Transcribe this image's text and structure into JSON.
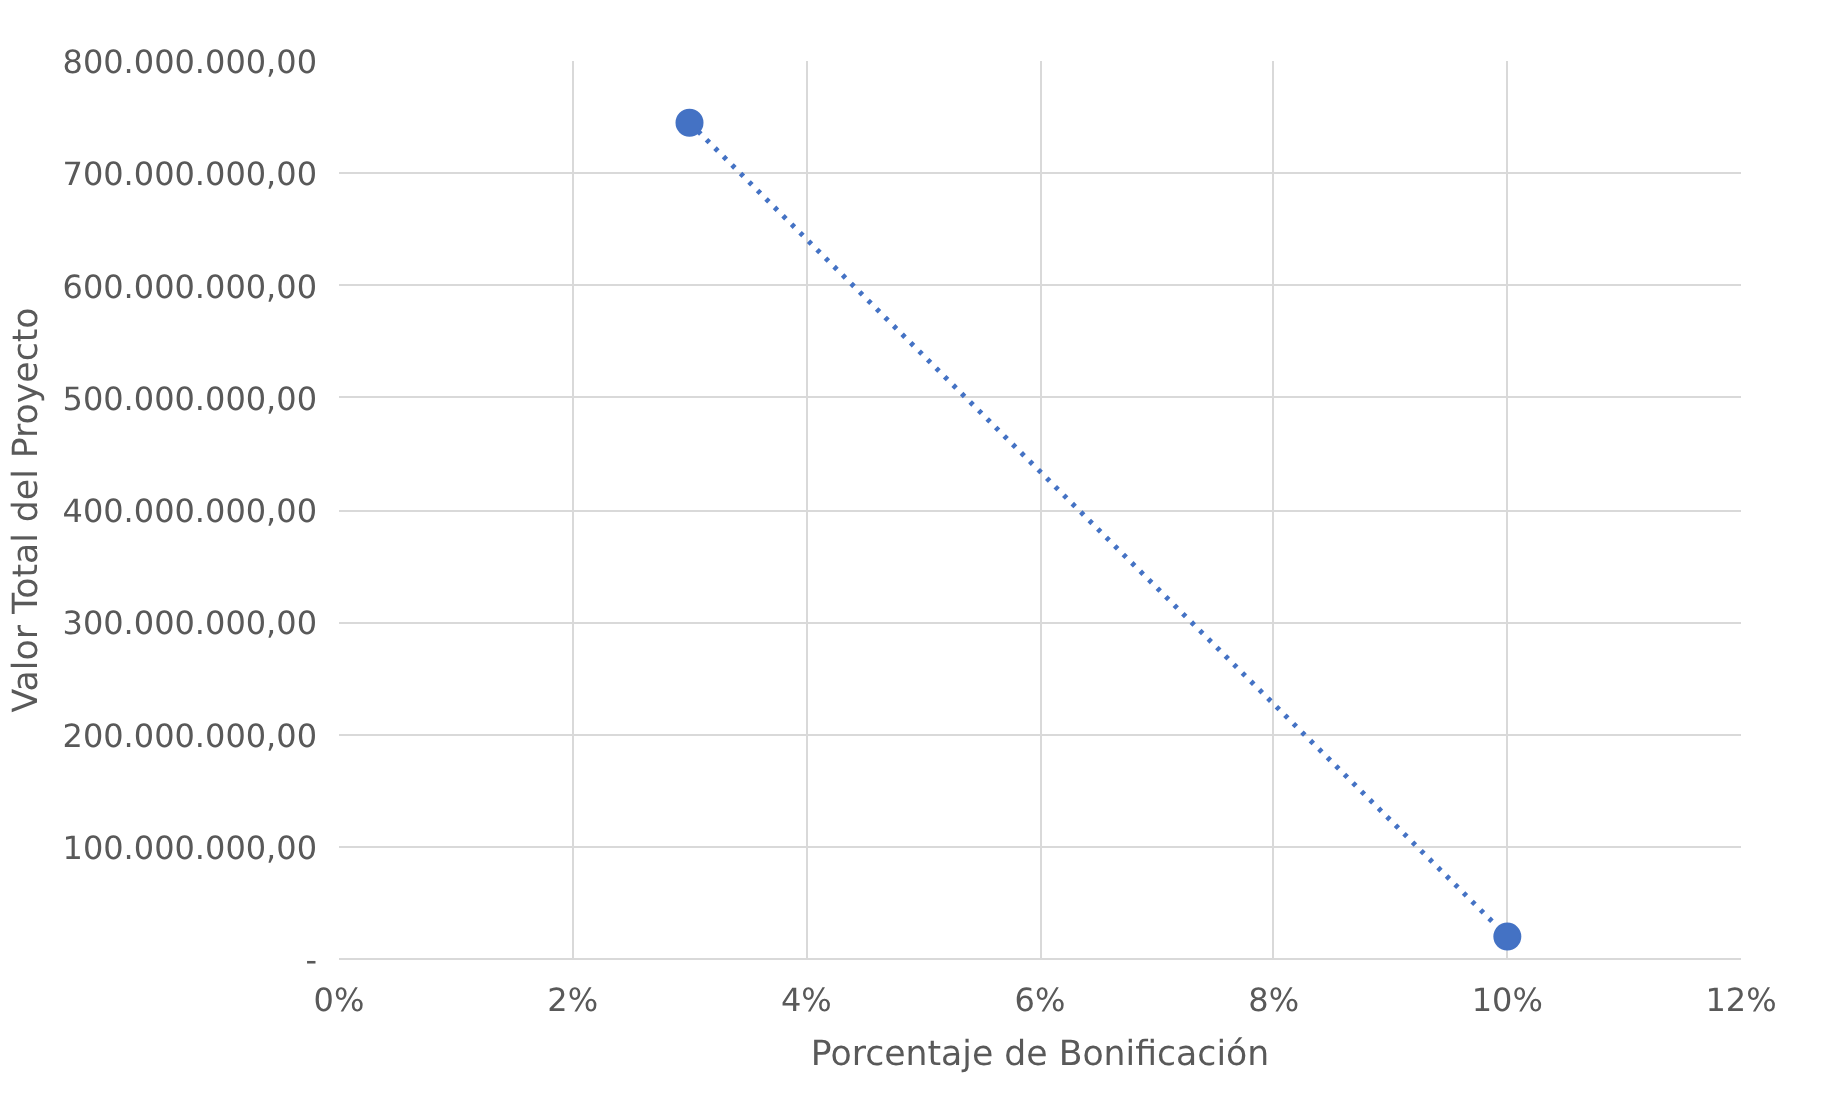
{
  "chart_data": {
    "type": "line",
    "xlabel": "Porcentaje de Bonificación",
    "ylabel": "Valor Total del Proyecto",
    "x": [
      3,
      10
    ],
    "series": [
      {
        "color": "#4472c4",
        "values": [
          745000000,
          20000000
        ]
      }
    ],
    "marker": "circle",
    "line_style": "dotted",
    "grid": true,
    "xlim": [
      0,
      12
    ],
    "xticks": [
      {
        "value": 0,
        "label": "0%"
      },
      {
        "value": 2,
        "label": "2%"
      },
      {
        "value": 4,
        "label": "4%"
      },
      {
        "value": 6,
        "label": "6%"
      },
      {
        "value": 8,
        "label": "8%"
      },
      {
        "value": 10,
        "label": "10%"
      },
      {
        "value": 12,
        "label": "12%"
      }
    ],
    "ylim": [
      0,
      800000000
    ],
    "yticks": [
      {
        "value": 0,
        "label": "-"
      },
      {
        "value": 100000000,
        "label": "100.000.000,00"
      },
      {
        "value": 200000000,
        "label": "200.000.000,00"
      },
      {
        "value": 300000000,
        "label": "300.000.000,00"
      },
      {
        "value": 400000000,
        "label": "400.000.000,00"
      },
      {
        "value": 500000000,
        "label": "500.000.000,00"
      },
      {
        "value": 600000000,
        "label": "600.000.000,00"
      },
      {
        "value": 700000000,
        "label": "700.000.000,00"
      },
      {
        "value": 800000000,
        "label": "800.000.000,00"
      }
    ]
  }
}
